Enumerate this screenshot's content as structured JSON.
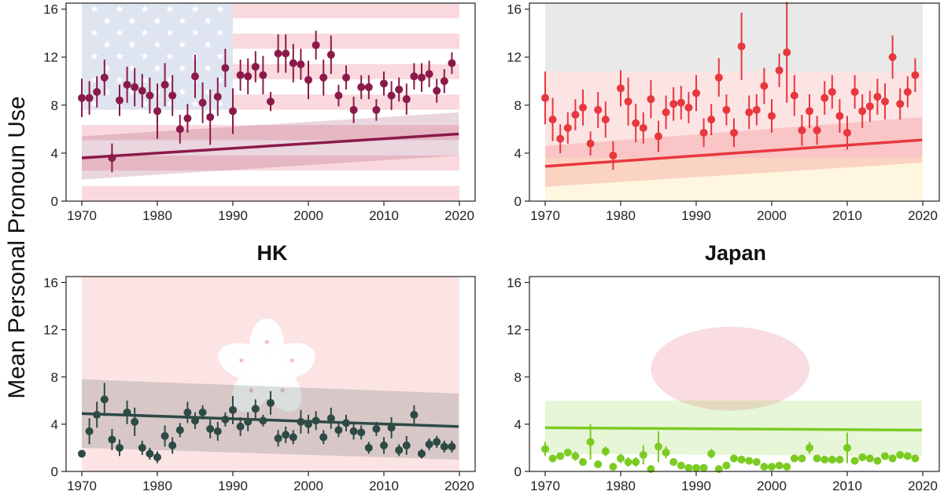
{
  "ylabel": "Mean Personal Pronoun Use",
  "chart_data": [
    {
      "type": "scatter",
      "title": "",
      "background": "us-flag",
      "color": "#8b1a4a",
      "xlim": [
        1970,
        2020
      ],
      "ylim": [
        0,
        16.5
      ],
      "xticks": [
        1970,
        1980,
        1990,
        2000,
        2010,
        2020
      ],
      "yticks": [
        0,
        4,
        8,
        12,
        16
      ],
      "grid": false,
      "x": [
        1970,
        1971,
        1972,
        1973,
        1974,
        1975,
        1976,
        1977,
        1978,
        1979,
        1980,
        1981,
        1982,
        1983,
        1984,
        1985,
        1986,
        1987,
        1988,
        1989,
        1990,
        1991,
        1992,
        1993,
        1994,
        1995,
        1996,
        1997,
        1998,
        1999,
        2000,
        2001,
        2002,
        2003,
        2004,
        2005,
        2006,
        2007,
        2008,
        2009,
        2010,
        2011,
        2012,
        2013,
        2014,
        2015,
        2016,
        2017,
        2018,
        2019
      ],
      "y": [
        8.6,
        8.6,
        9.1,
        10.3,
        3.6,
        8.4,
        9.7,
        9.5,
        9.2,
        8.8,
        7.5,
        9.7,
        8.8,
        6.0,
        6.9,
        10.4,
        8.2,
        7.0,
        8.7,
        11.1,
        7.5,
        10.5,
        10.4,
        11.2,
        10.5,
        8.3,
        12.3,
        12.3,
        11.5,
        11.4,
        10.1,
        13.0,
        10.3,
        12.2,
        8.8,
        10.3,
        7.6,
        9.5,
        9.5,
        7.6,
        9.8,
        8.8,
        9.3,
        8.5,
        10.4,
        10.3,
        10.6,
        9.2,
        10.0,
        11.5
      ],
      "err": [
        1.6,
        1.4,
        1.3,
        1.5,
        1.2,
        1.3,
        1.5,
        1.6,
        1.4,
        1.5,
        2.3,
        1.8,
        1.7,
        1.2,
        1.2,
        1.8,
        1.7,
        2.3,
        1.6,
        1.6,
        1.9,
        1.3,
        1.5,
        1.3,
        1.6,
        0.8,
        1.6,
        1.6,
        1.6,
        1.3,
        1.6,
        1.2,
        1.5,
        1.6,
        0.9,
        1.0,
        1.1,
        1.0,
        1.0,
        0.9,
        1.0,
        1.2,
        1.0,
        1.3,
        1.1,
        1.2,
        1.1,
        1.0,
        1.0,
        0.9
      ],
      "trend": {
        "y0": 3.6,
        "y1": 5.6,
        "lower0": 1.8,
        "lower1": 3.8,
        "upper0": 5.4,
        "upper1": 7.4
      }
    },
    {
      "type": "scatter",
      "title": "",
      "background": "china-flag",
      "color": "#e8373e",
      "xlim": [
        1970,
        2020
      ],
      "ylim": [
        0,
        16.5
      ],
      "xticks": [
        1970,
        1980,
        1990,
        2000,
        2010,
        2020
      ],
      "yticks": [
        0,
        4,
        8,
        12,
        16
      ],
      "grid": false,
      "x": [
        1970,
        1971,
        1972,
        1973,
        1974,
        1975,
        1976,
        1977,
        1978,
        1979,
        1980,
        1981,
        1982,
        1983,
        1984,
        1985,
        1986,
        1987,
        1988,
        1989,
        1990,
        1991,
        1992,
        1993,
        1994,
        1995,
        1996,
        1997,
        1998,
        1999,
        2000,
        2001,
        2002,
        2003,
        2004,
        2005,
        2006,
        2007,
        2008,
        2009,
        2010,
        2011,
        2012,
        2013,
        2014,
        2015,
        2016,
        2017,
        2018,
        2019
      ],
      "y": [
        8.6,
        6.8,
        5.2,
        6.1,
        7.2,
        7.8,
        4.8,
        7.6,
        6.8,
        3.8,
        9.4,
        8.3,
        6.5,
        6.1,
        8.5,
        5.4,
        7.4,
        8.1,
        8.2,
        7.8,
        9.0,
        5.7,
        6.8,
        10.3,
        7.6,
        5.7,
        12.9,
        7.4,
        7.6,
        9.6,
        7.1,
        10.9,
        12.4,
        8.8,
        5.9,
        7.5,
        5.9,
        8.6,
        9.1,
        7.1,
        5.7,
        9.1,
        7.5,
        7.9,
        8.7,
        8.3,
        12.0,
        8.1,
        9.1,
        10.5
      ],
      "err": [
        2.2,
        1.8,
        1.2,
        1.3,
        1.3,
        1.5,
        1.0,
        1.5,
        1.5,
        1.2,
        1.5,
        2.0,
        1.6,
        1.3,
        1.6,
        1.3,
        1.4,
        1.4,
        1.4,
        1.3,
        1.5,
        1.2,
        1.3,
        1.6,
        1.3,
        1.2,
        2.8,
        1.4,
        1.3,
        1.5,
        1.4,
        1.4,
        4.2,
        1.7,
        1.3,
        1.4,
        1.2,
        1.4,
        1.4,
        1.4,
        1.4,
        1.4,
        1.4,
        1.3,
        1.5,
        1.5,
        1.8,
        1.3,
        1.3,
        1.4
      ],
      "trend": {
        "y0": 2.9,
        "y1": 5.1,
        "lower0": 1.2,
        "lower1": 3.2,
        "upper0": 4.6,
        "upper1": 7.0
      }
    },
    {
      "type": "scatter",
      "title": "HK",
      "background": "hk-flag",
      "color": "#2d4a45",
      "xlim": [
        1970,
        2020
      ],
      "ylim": [
        0,
        16.5
      ],
      "xticks": [
        1970,
        1980,
        1990,
        2000,
        2010,
        2020
      ],
      "yticks": [
        0,
        4,
        8,
        12,
        16
      ],
      "grid": false,
      "x": [
        1970,
        1971,
        1972,
        1973,
        1974,
        1975,
        1976,
        1977,
        1978,
        1979,
        1980,
        1981,
        1982,
        1983,
        1984,
        1985,
        1986,
        1987,
        1988,
        1989,
        1990,
        1991,
        1992,
        1993,
        1994,
        1995,
        1996,
        1997,
        1998,
        1999,
        2000,
        2001,
        2002,
        2003,
        2004,
        2005,
        2006,
        2007,
        2008,
        2009,
        2010,
        2011,
        2012,
        2013,
        2014,
        2015,
        2016,
        2017,
        2018,
        2019
      ],
      "y": [
        1.5,
        3.4,
        4.8,
        6.1,
        2.7,
        2.0,
        5.0,
        4.2,
        2.0,
        1.5,
        1.2,
        3.0,
        2.2,
        3.5,
        5.0,
        4.3,
        5.0,
        3.6,
        3.4,
        4.4,
        5.2,
        3.8,
        4.2,
        5.3,
        4.3,
        5.8,
        2.8,
        3.1,
        2.9,
        4.2,
        4.0,
        4.3,
        2.9,
        4.5,
        3.5,
        4.1,
        3.4,
        3.3,
        2.0,
        3.6,
        2.2,
        3.7,
        1.8,
        2.2,
        4.8,
        1.5,
        2.3,
        2.5,
        2.1,
        2.1
      ],
      "err": [
        0.3,
        1.1,
        1.1,
        1.4,
        0.9,
        0.7,
        1.0,
        1.2,
        0.6,
        0.5,
        0.5,
        0.9,
        0.7,
        0.6,
        0.9,
        0.7,
        0.6,
        0.8,
        0.8,
        0.6,
        1.2,
        0.8,
        0.8,
        0.8,
        0.5,
        1.0,
        0.7,
        0.7,
        0.6,
        1.0,
        0.8,
        0.8,
        0.6,
        0.9,
        0.6,
        0.7,
        0.7,
        0.6,
        0.5,
        0.6,
        0.7,
        0.9,
        0.5,
        0.8,
        0.8,
        0.4,
        0.5,
        0.5,
        0.5,
        0.5
      ],
      "trend": {
        "y0": 4.9,
        "y1": 3.8,
        "lower0": 2.0,
        "lower1": 1.0,
        "upper0": 7.8,
        "upper1": 6.6
      }
    },
    {
      "type": "scatter",
      "title": "Japan",
      "background": "japan-flag",
      "color": "#7ccb23",
      "xlim": [
        1970,
        2020
      ],
      "ylim": [
        0,
        16.5
      ],
      "xticks": [
        1970,
        1980,
        1990,
        2000,
        2010,
        2020
      ],
      "yticks": [
        0,
        4,
        8,
        12,
        16
      ],
      "grid": false,
      "x": [
        1970,
        1971,
        1972,
        1973,
        1974,
        1975,
        1976,
        1977,
        1978,
        1979,
        1980,
        1981,
        1982,
        1983,
        1984,
        1985,
        1986,
        1987,
        1988,
        1989,
        1990,
        1991,
        1992,
        1993,
        1994,
        1995,
        1996,
        1997,
        1998,
        1999,
        2000,
        2001,
        2002,
        2003,
        2004,
        2005,
        2006,
        2007,
        2008,
        2009,
        2010,
        2011,
        2012,
        2013,
        2014,
        2015,
        2016,
        2017,
        2018,
        2019
      ],
      "y": [
        1.9,
        1.1,
        1.3,
        1.6,
        1.3,
        0.8,
        2.5,
        0.6,
        1.7,
        0.4,
        1.1,
        0.8,
        0.8,
        1.4,
        0.2,
        2.1,
        1.6,
        0.8,
        0.5,
        0.3,
        0.3,
        0.3,
        1.5,
        0.2,
        0.5,
        1.1,
        1.0,
        0.9,
        0.8,
        0.4,
        0.4,
        0.5,
        0.4,
        1.1,
        1.1,
        2.0,
        1.1,
        1.0,
        1.0,
        1.0,
        2.0,
        0.9,
        1.2,
        1.1,
        0.9,
        1.3,
        1.1,
        1.4,
        1.3,
        1.1
      ],
      "err": [
        0.6,
        0.3,
        0.3,
        0.3,
        0.4,
        0.3,
        1.5,
        0.3,
        0.4,
        0.3,
        0.4,
        0.4,
        0.4,
        0.8,
        0.2,
        1.3,
        0.5,
        0.3,
        0.3,
        0.2,
        0.2,
        0.2,
        0.4,
        0.2,
        0.3,
        0.3,
        0.3,
        0.3,
        0.3,
        0.2,
        0.2,
        0.3,
        0.2,
        0.3,
        0.3,
        0.5,
        0.3,
        0.3,
        0.3,
        0.3,
        1.3,
        0.3,
        0.3,
        0.3,
        0.3,
        0.3,
        0.3,
        0.3,
        0.3,
        0.3
      ],
      "trend": {
        "y0": 3.7,
        "y1": 3.5,
        "lower0": 1.5,
        "lower1": 1.3,
        "upper0": 6.0,
        "upper1": 6.0
      }
    }
  ]
}
